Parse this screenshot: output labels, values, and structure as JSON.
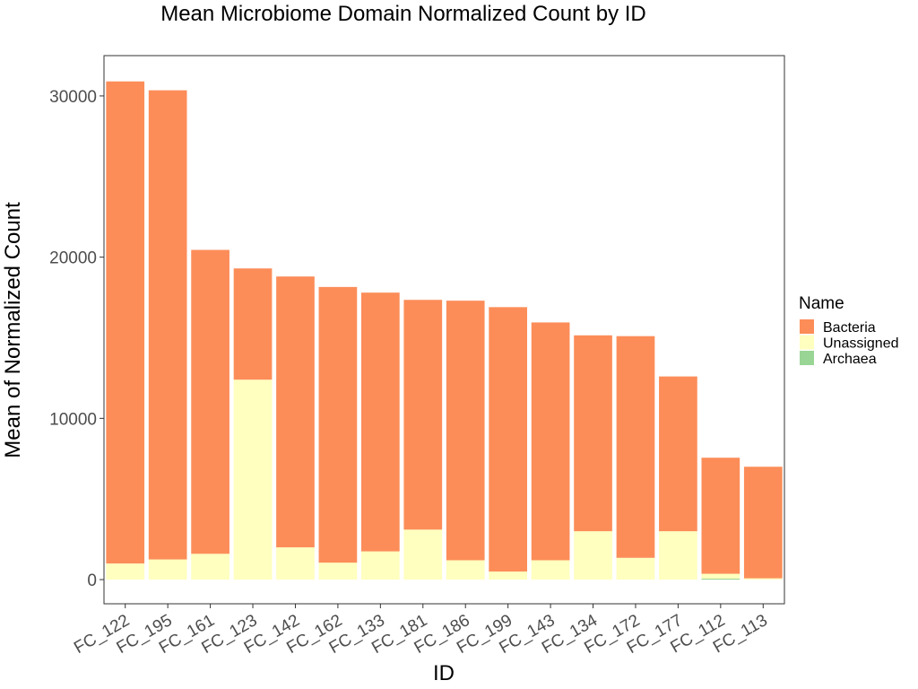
{
  "chart_data": {
    "type": "bar",
    "stacked": true,
    "title": "Mean Microbiome Domain Normalized Count by ID",
    "xlabel": "ID",
    "ylabel": "Mean of Normalized Count",
    "ylim": [
      -1500,
      32500
    ],
    "yticks": [
      0,
      10000,
      20000,
      30000
    ],
    "grid": false,
    "legend": {
      "title": "Name",
      "placement": "right"
    },
    "categories": [
      "FC_122",
      "FC_195",
      "FC_161",
      "FC_123",
      "FC_142",
      "FC_162",
      "FC_133",
      "FC_181",
      "FC_186",
      "FC_199",
      "FC_143",
      "FC_134",
      "FC_172",
      "FC_177",
      "FC_112",
      "FC_113"
    ],
    "series": [
      {
        "name": "Archaea",
        "color": "#99d594",
        "values": [
          0,
          0,
          0,
          0,
          0,
          0,
          0,
          0,
          0,
          0,
          0,
          0,
          0,
          0,
          60,
          0
        ]
      },
      {
        "name": "Unassigned",
        "color": "#ffffbf",
        "values": [
          1000,
          1250,
          1600,
          12400,
          2000,
          1050,
          1750,
          3100,
          1200,
          500,
          1200,
          3000,
          1350,
          3000,
          300,
          80
        ]
      },
      {
        "name": "Bacteria",
        "color": "#fc8d59",
        "values": [
          29900,
          29100,
          18850,
          6900,
          16800,
          17100,
          16050,
          14250,
          16100,
          16400,
          14750,
          12150,
          13750,
          9600,
          7200,
          6920
        ]
      }
    ],
    "legend_order": [
      "Bacteria",
      "Unassigned",
      "Archaea"
    ]
  }
}
